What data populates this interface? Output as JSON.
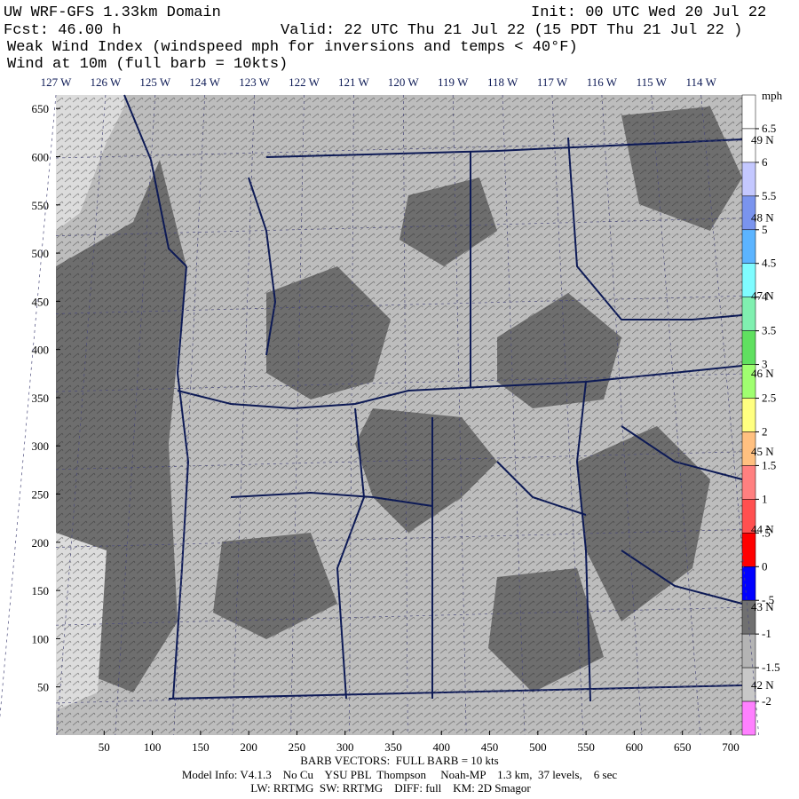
{
  "header": {
    "title": "UW WRF-GFS 1.33km Domain",
    "init": "Init: 00 UTC Wed 20 Jul 22",
    "fcst": "Fcst:   46.00 h",
    "valid": "Valid: 22 UTC Thu 21 Jul 22   (15 PDT Thu 21 Jul 22  )",
    "field": "Weak Wind Index (windspeed mph for inversions and temps < 40°F)",
    "wind": "Wind at 10m (full barb = 10kts)"
  },
  "map": {
    "xlim": [
      0,
      712
    ],
    "ylim": [
      0,
      664
    ],
    "xticks": [
      50,
      100,
      150,
      200,
      250,
      300,
      350,
      400,
      450,
      500,
      550,
      600,
      650,
      700
    ],
    "yticks": [
      50,
      100,
      150,
      200,
      250,
      300,
      350,
      400,
      450,
      500,
      550,
      600,
      650
    ],
    "lon_labels": [
      "127 W",
      "126 W",
      "125 W",
      "124 W",
      "123 W",
      "122 W",
      "121 W",
      "120 W",
      "119 W",
      "118 W",
      "117 W",
      "116 W",
      "115 W",
      "114 W"
    ],
    "lat_labels": [
      "49 N",
      "48 N",
      "47 N",
      "46 N",
      "45 N",
      "44 N",
      "43 N",
      "42 N"
    ]
  },
  "colorbar": {
    "unit": "mph",
    "levels": [
      6.5,
      6,
      5.5,
      5,
      4.5,
      4,
      3.5,
      3,
      2.5,
      2,
      1.5,
      1,
      {
        "value": 0.5,
        "label": ".5"
      },
      0,
      {
        "value": -0.5,
        "label": "-.5"
      },
      -1,
      -1.5,
      -2
    ],
    "colors": [
      "#ffffff",
      "#ffffff",
      "#c4c8ff",
      "#7a94ee",
      "#5cb4ff",
      "#7ffcff",
      "#80f0b0",
      "#60e060",
      "#a0ff70",
      "#ffff80",
      "#ffc080",
      "#ff8080",
      "#ff5050",
      "#ff0000",
      "#0000ff",
      "#707070",
      "#b4b4b4",
      "#c8c8c8",
      "#ff80ff"
    ]
  },
  "footer": {
    "barb": "BARB VECTORS:  FULL BARB = 10 kts",
    "model": "Model Info: V4.1.3    No Cu    YSU PBL  Thompson     Noah-MP    1.3 km,  37 levels,    6 sec",
    "physics": "LW: RRTMG  SW: RRTMG    DIFF: full    KM: 2D Smagor"
  }
}
